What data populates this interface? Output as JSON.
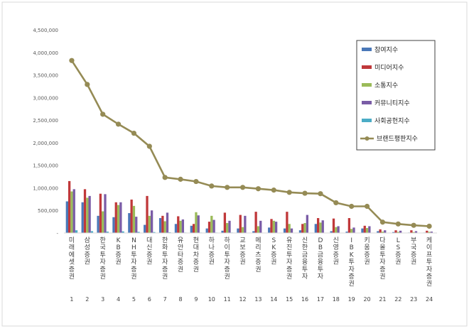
{
  "chart_data": {
    "type": "bar",
    "y_ticks": [
      "-",
      "500,000",
      "1,000,000",
      "1,500,000",
      "2,000,000",
      "2,500,000",
      "3,000,000",
      "3,500,000",
      "4,000,000",
      "4,500,000"
    ],
    "ylim": [
      0,
      4500000
    ],
    "grid": false,
    "legend_position": "right",
    "categories": [
      "미래에셋증권",
      "삼성증권",
      "한국투자증권",
      "KB증권",
      "NH투자증권",
      "대신증권",
      "한화투자증권",
      "유안타증권",
      "현대차증권",
      "하나증권",
      "하이투자증권",
      "교보증권",
      "메리츠증권",
      "SK증권",
      "유진투자증권",
      "신한금융투자",
      "DB금융투자",
      "신영증권",
      "IBK투자증권",
      "키움증권",
      "다올투자증권",
      "LS증권",
      "부국증권",
      "케이프투자증권"
    ],
    "ranks": [
      "1",
      "2",
      "3",
      "4",
      "5",
      "6",
      "7",
      "8",
      "9",
      "10",
      "11",
      "12",
      "13",
      "14",
      "15",
      "16",
      "17",
      "18",
      "19",
      "20",
      "21",
      "22",
      "23",
      "24"
    ],
    "series": [
      {
        "name": "참여지수",
        "color": "#4a78b8",
        "kind": "bar",
        "values": [
          700000,
          680000,
          380000,
          350000,
          440000,
          180000,
          330000,
          200000,
          160000,
          100000,
          50000,
          100000,
          40000,
          120000,
          100000,
          60000,
          200000,
          40000,
          30000,
          100000,
          40000,
          20000,
          10000,
          10000
        ]
      },
      {
        "name": "미디어지수",
        "color": "#c0383a",
        "kind": "bar",
        "values": [
          1150000,
          970000,
          870000,
          680000,
          740000,
          820000,
          380000,
          370000,
          200000,
          250000,
          450000,
          400000,
          470000,
          310000,
          470000,
          200000,
          330000,
          320000,
          330000,
          160000,
          80000,
          60000,
          60000,
          50000
        ]
      },
      {
        "name": "소통지수",
        "color": "#9bbb59",
        "kind": "bar",
        "values": [
          920000,
          780000,
          480000,
          620000,
          600000,
          380000,
          260000,
          270000,
          460000,
          380000,
          220000,
          130000,
          150000,
          270000,
          200000,
          220000,
          230000,
          130000,
          90000,
          110000,
          30000,
          25000,
          20000,
          25000
        ]
      },
      {
        "name": "커뮤니티지수",
        "color": "#7a5ca6",
        "kind": "bar",
        "values": [
          970000,
          820000,
          860000,
          680000,
          360000,
          500000,
          450000,
          300000,
          390000,
          290000,
          270000,
          380000,
          270000,
          250000,
          100000,
          400000,
          280000,
          150000,
          120000,
          150000,
          60000,
          50000,
          40000,
          30000
        ]
      },
      {
        "name": "사회공헌지수",
        "color": "#4bacc6",
        "kind": "bar",
        "values": [
          60000,
          40000,
          30000,
          35000,
          25000,
          20000,
          15000,
          10000,
          10000,
          10000,
          10000,
          8000,
          8000,
          6000,
          6000,
          6000,
          6000,
          5000,
          5000,
          5000,
          3000,
          3000,
          3000,
          3000
        ]
      },
      {
        "name": "브랜드평판지수",
        "color": "#958b55",
        "kind": "line",
        "values": [
          3820000,
          3290000,
          2630000,
          2410000,
          2210000,
          1920000,
          1230000,
          1190000,
          1140000,
          1040000,
          1010000,
          1010000,
          980000,
          950000,
          900000,
          880000,
          870000,
          670000,
          590000,
          590000,
          240000,
          200000,
          170000,
          150000
        ]
      }
    ]
  }
}
